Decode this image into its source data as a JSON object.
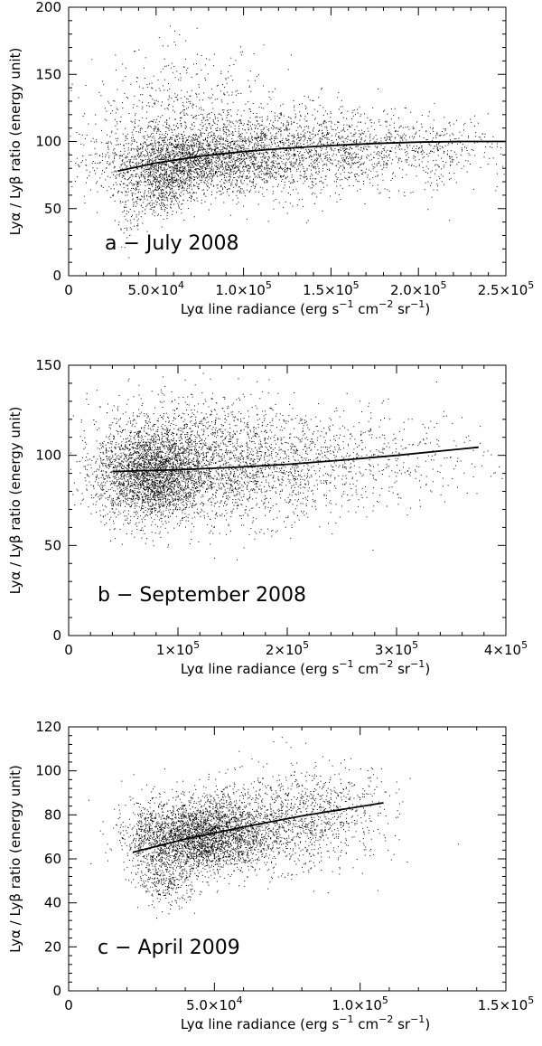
{
  "chart_data": [
    {
      "type": "scatter",
      "panel_label": "a − July 2008",
      "xlabel_parts": [
        "Lyα line radiance (erg s",
        "−1",
        " cm",
        "−2",
        " sr",
        "−1",
        ")"
      ],
      "ylabel_parts": [
        "Lyα / Lyβ ratio (energy unit)"
      ],
      "xlim": [
        0,
        250000
      ],
      "ylim": [
        0,
        200
      ],
      "xticks": [
        {
          "value": 0,
          "label": "0",
          "m": "",
          "e": ""
        },
        {
          "value": 50000,
          "label": "",
          "m": "5.0×10",
          "e": "4"
        },
        {
          "value": 100000,
          "label": "",
          "m": "1.0×10",
          "e": "5"
        },
        {
          "value": 150000,
          "label": "",
          "m": "1.5×10",
          "e": "5"
        },
        {
          "value": 200000,
          "label": "",
          "m": "2.0×10",
          "e": "5"
        },
        {
          "value": 250000,
          "label": "",
          "m": "2.5×10",
          "e": "5"
        }
      ],
      "yticks": [
        0,
        50,
        100,
        150,
        200
      ],
      "fit_line": {
        "x": [
          28000,
          50000,
          75000,
          100000,
          125000,
          150000,
          175000,
          200000,
          225000,
          250000
        ],
        "y": [
          78,
          84,
          89,
          92.5,
          95,
          97,
          98.5,
          99.5,
          100,
          100
        ]
      },
      "clusters": [
        {
          "cx": 68000,
          "cy": 85,
          "sx": 26000,
          "sy": 12,
          "n": 1900
        },
        {
          "cx": 110000,
          "cy": 93,
          "sx": 42000,
          "sy": 17,
          "n": 1700
        },
        {
          "cx": 160000,
          "cy": 95,
          "sx": 45000,
          "sy": 14,
          "n": 700
        },
        {
          "cx": 205000,
          "cy": 98,
          "sx": 22000,
          "sy": 9,
          "n": 150
        },
        {
          "cx": 65000,
          "cy": 130,
          "sx": 25000,
          "sy": 20,
          "n": 350
        },
        {
          "cx": 55000,
          "cy": 65,
          "sx": 7000,
          "sy": 10,
          "n": 350
        },
        {
          "cx": 36000,
          "cy": 55,
          "sx": 5000,
          "sy": 14,
          "n": 130
        }
      ]
    },
    {
      "type": "scatter",
      "panel_label": "b − September 2008",
      "xlabel_parts": [
        "Lyα line radiance (erg s",
        "−1",
        " cm",
        "−2",
        " sr",
        "−1",
        ")"
      ],
      "ylabel_parts": [
        "Lyα / Lyβ ratio (energy unit)"
      ],
      "xlim": [
        0,
        400000
      ],
      "ylim": [
        0,
        150
      ],
      "xticks": [
        {
          "value": 0,
          "label": "0",
          "m": "",
          "e": ""
        },
        {
          "value": 100000,
          "label": "",
          "m": "1×10",
          "e": "5"
        },
        {
          "value": 200000,
          "label": "",
          "m": "2×10",
          "e": "5"
        },
        {
          "value": 300000,
          "label": "",
          "m": "3×10",
          "e": "5"
        },
        {
          "value": 400000,
          "label": "",
          "m": "4×10",
          "e": "5"
        }
      ],
      "yticks": [
        0,
        50,
        100,
        150
      ],
      "fit_line": {
        "x": [
          40000,
          100000,
          150000,
          200000,
          250000,
          300000,
          375000
        ],
        "y": [
          91,
          92,
          93.3,
          95,
          97.3,
          100,
          104.5
        ]
      },
      "clusters": [
        {
          "cx": 75000,
          "cy": 90,
          "sx": 25000,
          "sy": 13,
          "n": 2800
        },
        {
          "cx": 150000,
          "cy": 93,
          "sx": 50000,
          "sy": 15,
          "n": 1800
        },
        {
          "cx": 270000,
          "cy": 98,
          "sx": 55000,
          "sy": 13,
          "n": 500
        },
        {
          "cx": 110000,
          "cy": 118,
          "sx": 50000,
          "sy": 10,
          "n": 300
        }
      ]
    },
    {
      "type": "scatter",
      "panel_label": "c − April 2009",
      "xlabel_parts": [
        "Lyα line radiance (erg s",
        "−1",
        " cm",
        "−2",
        " sr",
        "−1",
        ")"
      ],
      "ylabel_parts": [
        "Lyα / Lyβ  ratio (energy unit)"
      ],
      "xlim": [
        0,
        150000
      ],
      "ylim": [
        0,
        120
      ],
      "xticks": [
        {
          "value": 0,
          "label": "0",
          "m": "",
          "e": ""
        },
        {
          "value": 50000,
          "label": "",
          "m": "5.0×10",
          "e": "4"
        },
        {
          "value": 100000,
          "label": "",
          "m": "1.0×10",
          "e": "5"
        },
        {
          "value": 150000,
          "label": "",
          "m": "1.5×10",
          "e": "5"
        }
      ],
      "yticks": [
        0,
        20,
        40,
        60,
        80,
        100,
        120
      ],
      "fit_line": {
        "x": [
          22000,
          40000,
          60000,
          80000,
          108000
        ],
        "y": [
          63,
          69,
          74.5,
          79.5,
          85.5
        ]
      },
      "clusters": [
        {
          "cx": 44000,
          "cy": 70,
          "sx": 11000,
          "sy": 8,
          "n": 2600
        },
        {
          "cx": 65000,
          "cy": 76,
          "sx": 16000,
          "sy": 10,
          "n": 1200
        },
        {
          "cx": 88000,
          "cy": 82,
          "sx": 12000,
          "sy": 11,
          "n": 450
        },
        {
          "cx": 34000,
          "cy": 50,
          "sx": 5000,
          "sy": 6,
          "n": 300
        },
        {
          "cx": 28000,
          "cy": 68,
          "sx": 4000,
          "sy": 10,
          "n": 200
        }
      ]
    }
  ]
}
